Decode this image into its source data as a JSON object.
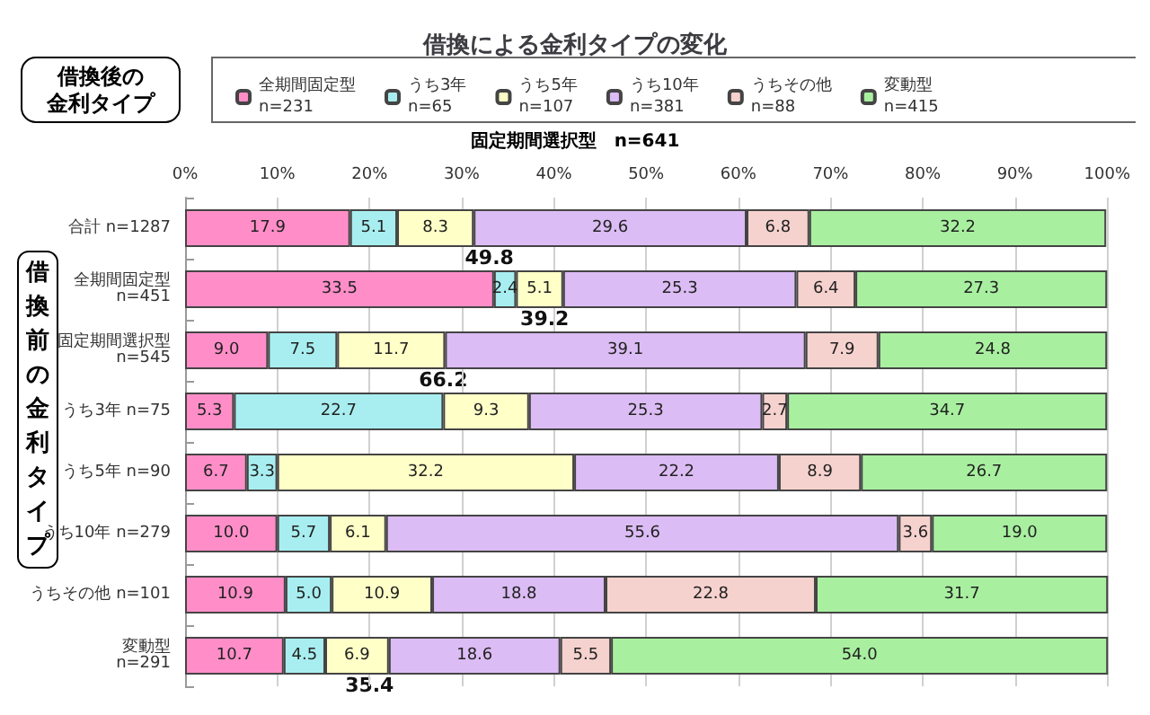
{
  "chart_data": {
    "type": "bar",
    "orientation": "horizontal",
    "stacked": true,
    "title": "借換による金利タイプの変化",
    "legend_title": "借換後の金利タイプ",
    "ylabel": "借換前の金利タイプ",
    "categories": [
      "合計 n=1287",
      "全期間固定型\nn=451",
      "固定期間選択型\nn=545",
      "うち3年 n=75",
      "うち5年 n=90",
      "うち10年 n=279",
      "うちその他 n=101",
      "変動型\nn=291"
    ],
    "series": [
      {
        "name": "全期間固定型\nn=231",
        "color": "#ff8ec8",
        "values": [
          17.9,
          33.5,
          9.0,
          5.3,
          6.7,
          10.0,
          10.9,
          10.7
        ],
        "value_labels": [
          "17.9",
          "33.5",
          "9.0",
          "5.3",
          "6.7",
          "10.0",
          "10.9",
          "10.7"
        ]
      },
      {
        "name": "うち3年\nn=65",
        "color": "#a8eef0",
        "values": [
          5.1,
          2.4,
          7.5,
          22.7,
          3.3,
          5.7,
          5.0,
          4.5
        ],
        "value_labels": [
          "5.1",
          "2.4",
          "7.5",
          "22.7",
          "3.3",
          "5.7",
          "5.0",
          "4.5"
        ]
      },
      {
        "name": "うち5年\nn=107",
        "color": "#ffffc8",
        "values": [
          8.3,
          5.1,
          11.7,
          9.3,
          32.2,
          6.1,
          10.9,
          6.9
        ],
        "value_labels": [
          "8.3",
          "5.1",
          "11.7",
          "9.3",
          "32.2",
          "6.1",
          "10.9",
          "6.9"
        ]
      },
      {
        "name": "うち10年\nn=381",
        "color": "#dcbcf4",
        "values": [
          29.6,
          25.3,
          39.1,
          25.3,
          22.2,
          55.6,
          18.8,
          18.6
        ],
        "value_labels": [
          "29.6",
          "25.3",
          "39.1",
          "25.3",
          "22.2",
          "55.6",
          "18.8",
          "18.6"
        ]
      },
      {
        "name": "うちその他\nn=88",
        "color": "#f6d2ce",
        "values": [
          6.8,
          6.4,
          7.9,
          2.7,
          8.9,
          3.6,
          22.8,
          5.5
        ],
        "value_labels": [
          "6.8",
          "6.4",
          "7.9",
          "2.7",
          "8.9",
          "3.6",
          "22.8",
          "5.5"
        ]
      },
      {
        "name": "変動型\nn=415",
        "color": "#a8f0a0",
        "values": [
          32.2,
          27.3,
          24.8,
          34.7,
          26.7,
          19.0,
          31.7,
          54.0
        ],
        "value_labels": [
          "32.2",
          "27.3",
          "24.8",
          "34.7",
          "26.7",
          "19.0",
          "31.7",
          "54.0"
        ]
      }
    ],
    "xlim": [
      0,
      100
    ],
    "xticks": [
      {
        "value": 0,
        "label": "0%"
      },
      {
        "value": 10,
        "label": "10%"
      },
      {
        "value": 20,
        "label": "20%"
      },
      {
        "value": 30,
        "label": "30%"
      },
      {
        "value": 40,
        "label": "40%"
      },
      {
        "value": 50,
        "label": "50%"
      },
      {
        "value": 60,
        "label": "60%"
      },
      {
        "value": 70,
        "label": "70%"
      },
      {
        "value": 80,
        "label": "80%"
      },
      {
        "value": 90,
        "label": "90%"
      },
      {
        "value": 100,
        "label": "100%"
      }
    ],
    "grid": "x",
    "legend": "top",
    "annotations": [
      "固定期間選択型　n=641",
      {
        "text": "49.8",
        "x": 33,
        "y": "合計 n=1287"
      },
      {
        "text": "39.2",
        "x": 39,
        "y": "全期間固定型\nn=451"
      },
      {
        "text": "66.2",
        "x": 28,
        "y": "固定期間選択型\nn=545"
      },
      {
        "text": "35.4",
        "x": 20,
        "y": "変動型\nn=291"
      }
    ]
  }
}
